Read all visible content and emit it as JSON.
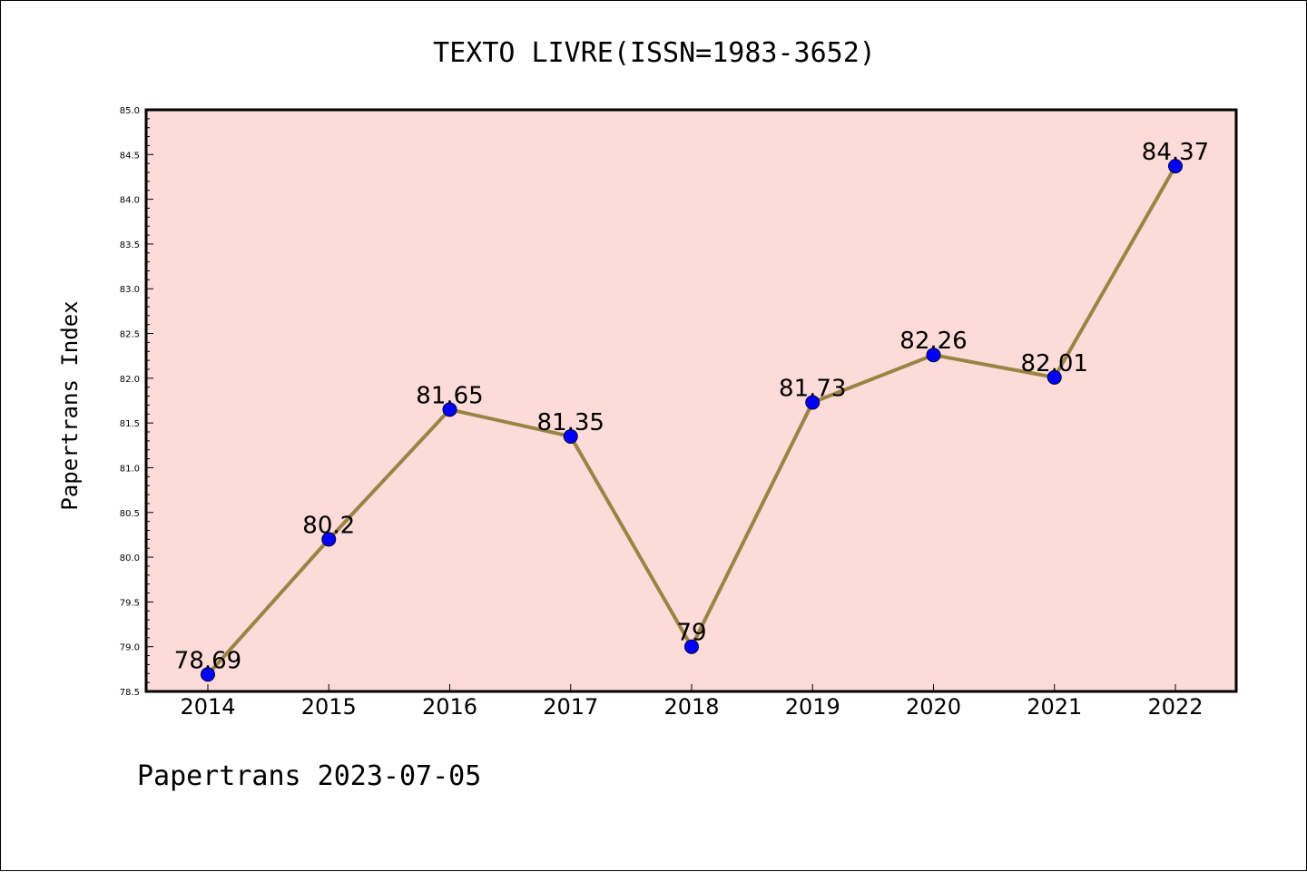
{
  "chart_data": {
    "type": "line",
    "title": "TEXTO LIVRE(ISSN=1983-3652)",
    "xlabel": "",
    "ylabel": "Papertrans Index",
    "footer": "Papertrans 2023-07-05",
    "categories": [
      "2014",
      "2015",
      "2016",
      "2017",
      "2018",
      "2019",
      "2020",
      "2021",
      "2022"
    ],
    "series": [
      {
        "values": [
          78.69,
          80.2,
          81.65,
          81.35,
          79,
          81.73,
          82.26,
          82.01,
          84.37
        ],
        "labels": [
          "78.69",
          "80.2",
          "81.65",
          "81.35",
          "79",
          "81.73",
          "82.26",
          "82.01",
          "84.37"
        ],
        "line_color": "#9a8444",
        "marker_color": "#0000ff"
      }
    ],
    "ylim": [
      78.5,
      85.0
    ],
    "yticks": [
      "78.5",
      "79.0",
      "79.5",
      "80.0",
      "80.5",
      "81.0",
      "81.5",
      "82.0",
      "82.5",
      "83.0",
      "83.5",
      "84.0",
      "84.5",
      "85.0"
    ],
    "plot_background": "#fddbd8",
    "grid": false,
    "legend": "none"
  }
}
